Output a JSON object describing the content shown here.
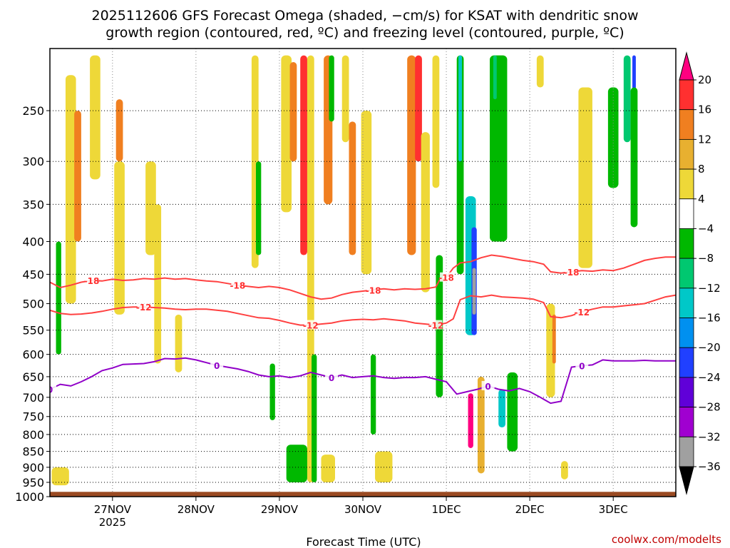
{
  "chart_data": {
    "type": "heatmap",
    "title_line1": "2025112606 GFS Forecast Omega (shaded, −cm/s) for KSAT with dendritic snow",
    "title_line2": "growth region (contoured, red, ºC) and freezing level (contoured, purple, ºC)",
    "xlabel": "Forecast Time (UTC)",
    "credit": "coolwx.com/modelts",
    "x_ticks": [
      {
        "t": 18,
        "label": "27NOV",
        "sublabel": "2025"
      },
      {
        "t": 42,
        "label": "28NOV",
        "sublabel": ""
      },
      {
        "t": 66,
        "label": "29NOV",
        "sublabel": ""
      },
      {
        "t": 90,
        "label": "30NOV",
        "sublabel": ""
      },
      {
        "t": 114,
        "label": "1DEC",
        "sublabel": ""
      },
      {
        "t": 138,
        "label": "2DEC",
        "sublabel": ""
      },
      {
        "t": 162,
        "label": "3DEC",
        "sublabel": ""
      }
    ],
    "x_range_hours": [
      0,
      180
    ],
    "y_ticks": [
      250,
      300,
      350,
      400,
      450,
      500,
      550,
      600,
      650,
      700,
      750,
      800,
      850,
      900,
      950,
      1000
    ],
    "y_range_hpa": [
      200,
      1000
    ],
    "y_scale": "log",
    "ground_top_hpa": 983,
    "colorbar": {
      "levels": [
        "20",
        "16",
        "12",
        "8",
        "4",
        "−4",
        "−8",
        "−12",
        "−16",
        "−20",
        "−24",
        "−28",
        "−32",
        "−36"
      ],
      "colors": [
        "#ff0080",
        "#ff3030",
        "#f07f20",
        "#e8b030",
        "#eed838",
        "#ffffff",
        "#00b800",
        "#00c870",
        "#00c8c8",
        "#0090f0",
        "#2040ff",
        "#6000d8",
        "#a000d0",
        "#a0a0a0",
        "#000000"
      ]
    },
    "contour_labels": {
      "dgz_upper": "-18",
      "dgz_lower": "-12",
      "freezing": "0"
    },
    "series": [
      {
        "name": "-18",
        "values": [
          [
            0,
            463
          ],
          [
            3,
            472
          ],
          [
            6,
            468
          ],
          [
            9,
            463
          ],
          [
            12,
            460
          ],
          [
            15,
            461
          ],
          [
            18,
            458
          ],
          [
            21,
            460
          ],
          [
            24,
            459
          ],
          [
            27,
            457
          ],
          [
            30,
            458
          ],
          [
            33,
            456
          ],
          [
            36,
            458
          ],
          [
            39,
            457
          ],
          [
            42,
            459
          ],
          [
            45,
            461
          ],
          [
            48,
            462
          ],
          [
            51,
            465
          ],
          [
            54,
            468
          ],
          [
            57,
            470
          ],
          [
            60,
            472
          ],
          [
            63,
            470
          ],
          [
            66,
            472
          ],
          [
            69,
            476
          ],
          [
            72,
            482
          ],
          [
            75,
            488
          ],
          [
            78,
            492
          ],
          [
            81,
            490
          ],
          [
            84,
            484
          ],
          [
            87,
            480
          ],
          [
            90,
            478
          ],
          [
            93,
            476
          ],
          [
            96,
            474
          ],
          [
            99,
            476
          ],
          [
            102,
            474
          ],
          [
            105,
            475
          ],
          [
            108,
            474
          ],
          [
            111,
            471
          ],
          [
            112,
            460
          ],
          [
            114,
            455
          ],
          [
            116,
            440
          ],
          [
            118,
            432
          ],
          [
            121,
            430
          ],
          [
            124,
            424
          ],
          [
            127,
            420
          ],
          [
            130,
            422
          ],
          [
            133,
            425
          ],
          [
            136,
            428
          ],
          [
            139,
            430
          ],
          [
            142,
            434
          ],
          [
            144,
            446
          ],
          [
            147,
            448
          ],
          [
            150,
            446
          ],
          [
            153,
            444
          ],
          [
            156,
            445
          ],
          [
            159,
            443
          ],
          [
            162,
            444
          ],
          [
            165,
            440
          ],
          [
            168,
            434
          ],
          [
            171,
            428
          ],
          [
            174,
            425
          ],
          [
            177,
            423
          ],
          [
            180,
            423
          ]
        ]
      },
      {
        "name": "-12",
        "values": [
          [
            0,
            512
          ],
          [
            3,
            518
          ],
          [
            6,
            520
          ],
          [
            9,
            519
          ],
          [
            12,
            517
          ],
          [
            15,
            514
          ],
          [
            18,
            510
          ],
          [
            21,
            507
          ],
          [
            24,
            506
          ],
          [
            27,
            506
          ],
          [
            30,
            507
          ],
          [
            33,
            508
          ],
          [
            36,
            510
          ],
          [
            39,
            511
          ],
          [
            42,
            510
          ],
          [
            45,
            510
          ],
          [
            48,
            512
          ],
          [
            51,
            514
          ],
          [
            54,
            518
          ],
          [
            57,
            522
          ],
          [
            60,
            526
          ],
          [
            63,
            527
          ],
          [
            66,
            531
          ],
          [
            69,
            536
          ],
          [
            72,
            540
          ],
          [
            75,
            540
          ],
          [
            78,
            538
          ],
          [
            81,
            536
          ],
          [
            84,
            532
          ],
          [
            87,
            530
          ],
          [
            90,
            529
          ],
          [
            93,
            530
          ],
          [
            96,
            528
          ],
          [
            99,
            530
          ],
          [
            102,
            532
          ],
          [
            105,
            536
          ],
          [
            108,
            538
          ],
          [
            111,
            540
          ],
          [
            114,
            536
          ],
          [
            116,
            528
          ],
          [
            118,
            493
          ],
          [
            121,
            486
          ],
          [
            124,
            488
          ],
          [
            127,
            485
          ],
          [
            130,
            488
          ],
          [
            133,
            489
          ],
          [
            136,
            490
          ],
          [
            139,
            492
          ],
          [
            142,
            498
          ],
          [
            144,
            524
          ],
          [
            147,
            526
          ],
          [
            150,
            522
          ],
          [
            153,
            515
          ],
          [
            156,
            510
          ],
          [
            159,
            506
          ],
          [
            162,
            506
          ],
          [
            165,
            504
          ],
          [
            168,
            502
          ],
          [
            171,
            500
          ],
          [
            174,
            494
          ],
          [
            177,
            488
          ],
          [
            180,
            485
          ]
        ]
      },
      {
        "name": "0",
        "values": [
          [
            0,
            680
          ],
          [
            3,
            668
          ],
          [
            6,
            672
          ],
          [
            9,
            662
          ],
          [
            12,
            650
          ],
          [
            15,
            636
          ],
          [
            18,
            630
          ],
          [
            21,
            622
          ],
          [
            24,
            621
          ],
          [
            27,
            620
          ],
          [
            30,
            616
          ],
          [
            33,
            609
          ],
          [
            36,
            610
          ],
          [
            39,
            608
          ],
          [
            42,
            612
          ],
          [
            45,
            618
          ],
          [
            48,
            624
          ],
          [
            51,
            628
          ],
          [
            54,
            632
          ],
          [
            57,
            638
          ],
          [
            60,
            646
          ],
          [
            63,
            650
          ],
          [
            66,
            648
          ],
          [
            69,
            652
          ],
          [
            72,
            648
          ],
          [
            75,
            640
          ],
          [
            78,
            646
          ],
          [
            81,
            652
          ],
          [
            84,
            646
          ],
          [
            87,
            652
          ],
          [
            90,
            650
          ],
          [
            93,
            648
          ],
          [
            96,
            652
          ],
          [
            99,
            654
          ],
          [
            102,
            652
          ],
          [
            105,
            652
          ],
          [
            108,
            650
          ],
          [
            111,
            656
          ],
          [
            114,
            662
          ],
          [
            117,
            692
          ],
          [
            120,
            686
          ],
          [
            123,
            680
          ],
          [
            126,
            672
          ],
          [
            129,
            680
          ],
          [
            132,
            684
          ],
          [
            135,
            678
          ],
          [
            138,
            686
          ],
          [
            141,
            700
          ],
          [
            144,
            715
          ],
          [
            147,
            710
          ],
          [
            150,
            628
          ],
          [
            153,
            625
          ],
          [
            156,
            623
          ],
          [
            159,
            612
          ],
          [
            162,
            614
          ],
          [
            165,
            614
          ],
          [
            168,
            614
          ],
          [
            171,
            613
          ],
          [
            174,
            614
          ],
          [
            177,
            614
          ],
          [
            180,
            614
          ]
        ]
      }
    ],
    "omega_regions": [
      {
        "t": 2.5,
        "p0": 400,
        "p1": 600,
        "w": 1.5,
        "v": -8
      },
      {
        "t": 6,
        "p0": 220,
        "p1": 500,
        "w": 3,
        "v": 4
      },
      {
        "t": 8,
        "p0": 250,
        "p1": 400,
        "w": 2,
        "v": 12
      },
      {
        "t": 13,
        "p0": 205,
        "p1": 320,
        "w": 3,
        "v": 4
      },
      {
        "t": 20,
        "p0": 240,
        "p1": 300,
        "w": 2,
        "v": 12
      },
      {
        "t": 20,
        "p0": 300,
        "p1": 520,
        "w": 3,
        "v": 4
      },
      {
        "t": 29,
        "p0": 300,
        "p1": 420,
        "w": 3,
        "v": 4
      },
      {
        "t": 31,
        "p0": 350,
        "p1": 620,
        "w": 2,
        "v": 4
      },
      {
        "t": 3,
        "p0": 900,
        "p1": 960,
        "w": 5,
        "v": 4
      },
      {
        "t": 59,
        "p0": 205,
        "p1": 440,
        "w": 2,
        "v": 4
      },
      {
        "t": 60,
        "p0": 300,
        "p1": 420,
        "w": 1.5,
        "v": -8
      },
      {
        "t": 68,
        "p0": 205,
        "p1": 360,
        "w": 3,
        "v": 4
      },
      {
        "t": 70,
        "p0": 210,
        "p1": 300,
        "w": 2,
        "v": 12
      },
      {
        "t": 71,
        "p0": 830,
        "p1": 950,
        "w": 6,
        "v": -8
      },
      {
        "t": 64,
        "p0": 620,
        "p1": 760,
        "w": 1.5,
        "v": -8
      },
      {
        "t": 73,
        "p0": 205,
        "p1": 420,
        "w": 2,
        "v": 16
      },
      {
        "t": 75,
        "p0": 205,
        "p1": 950,
        "w": 2,
        "v": 4
      },
      {
        "t": 76,
        "p0": 600,
        "p1": 950,
        "w": 1.5,
        "v": -8
      },
      {
        "t": 80,
        "p0": 205,
        "p1": 350,
        "w": 2.5,
        "v": 12
      },
      {
        "t": 80,
        "p0": 860,
        "p1": 950,
        "w": 4,
        "v": 4
      },
      {
        "t": 81,
        "p0": 205,
        "p1": 260,
        "w": 1.5,
        "v": -8
      },
      {
        "t": 85,
        "p0": 205,
        "p1": 280,
        "w": 2,
        "v": 4
      },
      {
        "t": 87,
        "p0": 260,
        "p1": 420,
        "w": 2,
        "v": 12
      },
      {
        "t": 91,
        "p0": 250,
        "p1": 450,
        "w": 3,
        "v": 4
      },
      {
        "t": 93,
        "p0": 600,
        "p1": 800,
        "w": 1.5,
        "v": -8
      },
      {
        "t": 96,
        "p0": 850,
        "p1": 950,
        "w": 5,
        "v": 4
      },
      {
        "t": 104,
        "p0": 205,
        "p1": 420,
        "w": 2.5,
        "v": 12
      },
      {
        "t": 106,
        "p0": 205,
        "p1": 300,
        "w": 2,
        "v": 16
      },
      {
        "t": 108,
        "p0": 270,
        "p1": 480,
        "w": 2.5,
        "v": 4
      },
      {
        "t": 111,
        "p0": 205,
        "p1": 330,
        "w": 2,
        "v": 4
      },
      {
        "t": 112,
        "p0": 420,
        "p1": 700,
        "w": 2,
        "v": -8
      },
      {
        "t": 118,
        "p0": 205,
        "p1": 450,
        "w": 2,
        "v": -8
      },
      {
        "t": 118,
        "p0": 205,
        "p1": 300,
        "w": 1,
        "v": -16
      },
      {
        "t": 121,
        "p0": 340,
        "p1": 560,
        "w": 3,
        "v": -16
      },
      {
        "t": 122,
        "p0": 380,
        "p1": 560,
        "w": 1.5,
        "v": -24
      },
      {
        "t": 122,
        "p0": 440,
        "p1": 520,
        "w": 1,
        "v": -36
      },
      {
        "t": 121,
        "p0": 690,
        "p1": 840,
        "w": 1.5,
        "v": 20
      },
      {
        "t": 124,
        "p0": 650,
        "p1": 920,
        "w": 2,
        "v": 8
      },
      {
        "t": 129,
        "p0": 205,
        "p1": 400,
        "w": 5,
        "v": -8
      },
      {
        "t": 130,
        "p0": 680,
        "p1": 780,
        "w": 2,
        "v": -16
      },
      {
        "t": 133,
        "p0": 640,
        "p1": 850,
        "w": 3,
        "v": -8
      },
      {
        "t": 128,
        "p0": 205,
        "p1": 240,
        "w": 1,
        "v": -12
      },
      {
        "t": 141,
        "p0": 205,
        "p1": 230,
        "w": 2,
        "v": 4
      },
      {
        "t": 144,
        "p0": 500,
        "p1": 700,
        "w": 2.5,
        "v": 4
      },
      {
        "t": 145,
        "p0": 520,
        "p1": 620,
        "w": 1,
        "v": 12
      },
      {
        "t": 154,
        "p0": 240,
        "p1": 330,
        "w": 3,
        "v": 12
      },
      {
        "t": 154,
        "p0": 230,
        "p1": 440,
        "w": 4,
        "v": 4
      },
      {
        "t": 162,
        "p0": 230,
        "p1": 330,
        "w": 3,
        "v": -8
      },
      {
        "t": 166,
        "p0": 205,
        "p1": 280,
        "w": 2,
        "v": -12
      },
      {
        "t": 168,
        "p0": 205,
        "p1": 250,
        "w": 1,
        "v": -24
      },
      {
        "t": 168,
        "p0": 230,
        "p1": 380,
        "w": 2,
        "v": -8
      },
      {
        "t": 148,
        "p0": 880,
        "p1": 940,
        "w": 2,
        "v": 4
      },
      {
        "t": 37,
        "p0": 520,
        "p1": 640,
        "w": 2,
        "v": 4
      }
    ]
  }
}
